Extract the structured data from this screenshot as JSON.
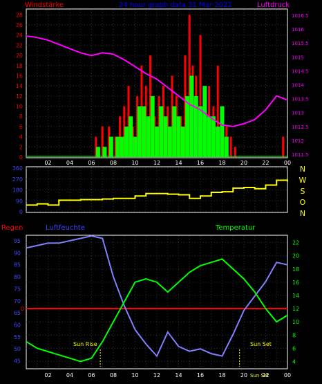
{
  "header": {
    "title": "24 hour graph data  31 Mar 2022",
    "left_label": "Windstärke",
    "right_label": "Luftdruck"
  },
  "colors": {
    "background": "#000000",
    "frame": "#ffffff",
    "grid": "#333333",
    "wind_gust": "#ff0000",
    "wind_avg": "#00ff00",
    "pressure": "#ff00ff",
    "direction": "#ffff00",
    "humidity": "#8080ff",
    "temperature": "#00ff00",
    "rain": "#ff0000",
    "title": "#0000ff",
    "left_axis_blue": "#4444ff",
    "right_axis_green": "#00ff00",
    "sun": "#ffff00",
    "compass": "#ffff00"
  },
  "x_ticks": [
    "02",
    "04",
    "06",
    "08",
    "10",
    "12",
    "14",
    "16",
    "18",
    "20",
    "22",
    "00"
  ],
  "panel1": {
    "wind_ticks": [
      "0",
      "2",
      "4",
      "6",
      "8",
      "10",
      "12",
      "14",
      "16",
      "18",
      "20",
      "22",
      "24",
      "26",
      "28"
    ],
    "pressure_ticks": [
      "1011.5",
      "1012",
      "1012.5",
      "1013",
      "1013.5",
      "1014",
      "1014.5",
      "1015",
      "1015.5",
      "1016",
      "1016.5"
    ]
  },
  "panel2": {
    "dir_ticks": [
      "0",
      "90",
      "180",
      "270",
      "360"
    ],
    "compass": [
      "N",
      "W",
      "S",
      "O",
      "N"
    ]
  },
  "panel3": {
    "left_title_rain": "Regen",
    "left_title_humidity": "Luftfeuchte",
    "right_title": "Temperatur",
    "humidity_ticks": [
      "45",
      "50",
      "55",
      "60",
      "65",
      "70",
      "75",
      "80",
      "85",
      "90",
      "95"
    ],
    "temp_ticks": [
      "4",
      "6",
      "8",
      "10",
      "12",
      "14",
      "16",
      "18",
      "20",
      "22"
    ],
    "rain_zero": "0",
    "sun_rise": "Sun Rise",
    "sun_set": "Sun Set",
    "sun_set_small": "Sun Set"
  },
  "chart_data": [
    {
      "type": "bar",
      "title": "24 hour graph data  31 Mar 2022",
      "ylabel": "Windstärke",
      "y2label": "Luftdruck",
      "x_range_hours": [
        0,
        24
      ],
      "ylim": [
        0,
        29
      ],
      "y2lim": [
        1011.4,
        1016.7
      ],
      "series": [
        {
          "name": "Windstärke",
          "kind": "gust_bars",
          "hours": [
            6.4,
            7.0,
            7.6,
            8.2,
            8.6,
            9.0,
            9.4,
            9.8,
            10.2,
            10.6,
            11.0,
            11.4,
            11.8,
            12.2,
            12.6,
            13.0,
            13.4,
            13.8,
            14.2,
            14.6,
            15.0,
            15.3,
            15.6,
            16.0,
            16.4,
            16.8,
            17.2,
            17.6,
            18.0,
            18.4,
            18.8,
            19.2,
            23.6
          ],
          "values": [
            4,
            6,
            6,
            4,
            8,
            10,
            14,
            6,
            12,
            18,
            14,
            20,
            8,
            12,
            14,
            10,
            16,
            12,
            8,
            20,
            28,
            18,
            16,
            24,
            10,
            14,
            10,
            18,
            8,
            6,
            4,
            2,
            4
          ]
        },
        {
          "name": "Windstärke",
          "kind": "average_bars",
          "hours": [
            6.6,
            7.2,
            7.8,
            8.4,
            8.8,
            9.2,
            9.6,
            10.0,
            10.4,
            10.8,
            11.2,
            11.6,
            12.0,
            12.4,
            12.8,
            13.2,
            13.6,
            14.0,
            14.4,
            14.8,
            15.2,
            15.6,
            16.0,
            16.4,
            16.8,
            17.2,
            17.6,
            18.0,
            18.4
          ],
          "values": [
            2,
            2,
            4,
            4,
            4,
            6,
            8,
            4,
            10,
            10,
            8,
            12,
            6,
            10,
            8,
            6,
            10,
            8,
            6,
            12,
            16,
            12,
            10,
            14,
            8,
            8,
            6,
            10,
            4
          ]
        },
        {
          "name": "Luftdruck",
          "kind": "line",
          "hours": [
            0,
            1,
            2,
            3,
            4,
            5,
            6,
            7,
            8,
            9,
            10,
            11,
            12,
            13,
            14,
            15,
            16,
            17,
            18,
            19,
            20,
            21,
            22,
            23,
            24
          ],
          "values": [
            1015.75,
            1015.7,
            1015.6,
            1015.45,
            1015.3,
            1015.15,
            1015.05,
            1015.15,
            1015.1,
            1014.9,
            1014.65,
            1014.4,
            1014.2,
            1013.9,
            1013.6,
            1013.3,
            1013.1,
            1012.8,
            1012.55,
            1012.5,
            1012.6,
            1012.75,
            1013.1,
            1013.6,
            1013.45
          ]
        }
      ]
    },
    {
      "type": "line",
      "ylabel": "",
      "ylim": [
        0,
        360
      ],
      "series": [
        {
          "name": "",
          "hours": [
            0,
            1,
            2,
            3,
            4,
            5,
            6,
            7,
            8,
            9,
            10,
            11,
            12,
            13,
            14,
            15,
            16,
            17,
            18,
            19,
            20,
            21,
            22,
            23,
            24
          ],
          "values": [
            55,
            65,
            55,
            95,
            95,
            100,
            100,
            105,
            110,
            110,
            130,
            150,
            150,
            145,
            140,
            110,
            130,
            160,
            165,
            195,
            200,
            190,
            220,
            260,
            250
          ]
        }
      ]
    },
    {
      "type": "line",
      "ylabel": "Luftfeuchte",
      "y2label": "Temperatur",
      "ylim": [
        42,
        97
      ],
      "y2lim": [
        3,
        23
      ],
      "series": [
        {
          "name": "Luftfeuchte",
          "axis": "left",
          "hours": [
            0,
            1,
            2,
            3,
            4,
            5,
            6,
            7,
            8,
            8.5,
            9,
            10,
            11,
            12,
            13,
            14,
            15,
            16,
            17,
            18,
            19,
            20,
            21,
            22,
            23,
            24
          ],
          "values": [
            92,
            93,
            94,
            94,
            95,
            96,
            97,
            96,
            80,
            74,
            68,
            58,
            52,
            47,
            57,
            51,
            49,
            50,
            48,
            47,
            56,
            66,
            72,
            78,
            86,
            85
          ]
        },
        {
          "name": "Temperatur",
          "axis": "right",
          "hours": [
            0,
            1,
            2,
            3,
            4,
            5,
            6,
            7,
            8,
            9,
            10,
            11,
            12,
            13,
            14,
            15,
            16,
            17,
            18,
            19,
            20,
            21,
            22,
            23,
            24
          ],
          "values": [
            7,
            6,
            5.5,
            5,
            4.5,
            4,
            4.5,
            7,
            10,
            13,
            16,
            16.5,
            16,
            14.5,
            16,
            17.5,
            18.5,
            19,
            19.5,
            18,
            16.5,
            14.5,
            12,
            10,
            11
          ]
        },
        {
          "name": "Regen",
          "axis": "rain",
          "hours": [
            0,
            24
          ],
          "values": [
            0,
            0
          ]
        }
      ],
      "annotations": [
        "Sun Rise",
        "Sun Set"
      ]
    }
  ]
}
